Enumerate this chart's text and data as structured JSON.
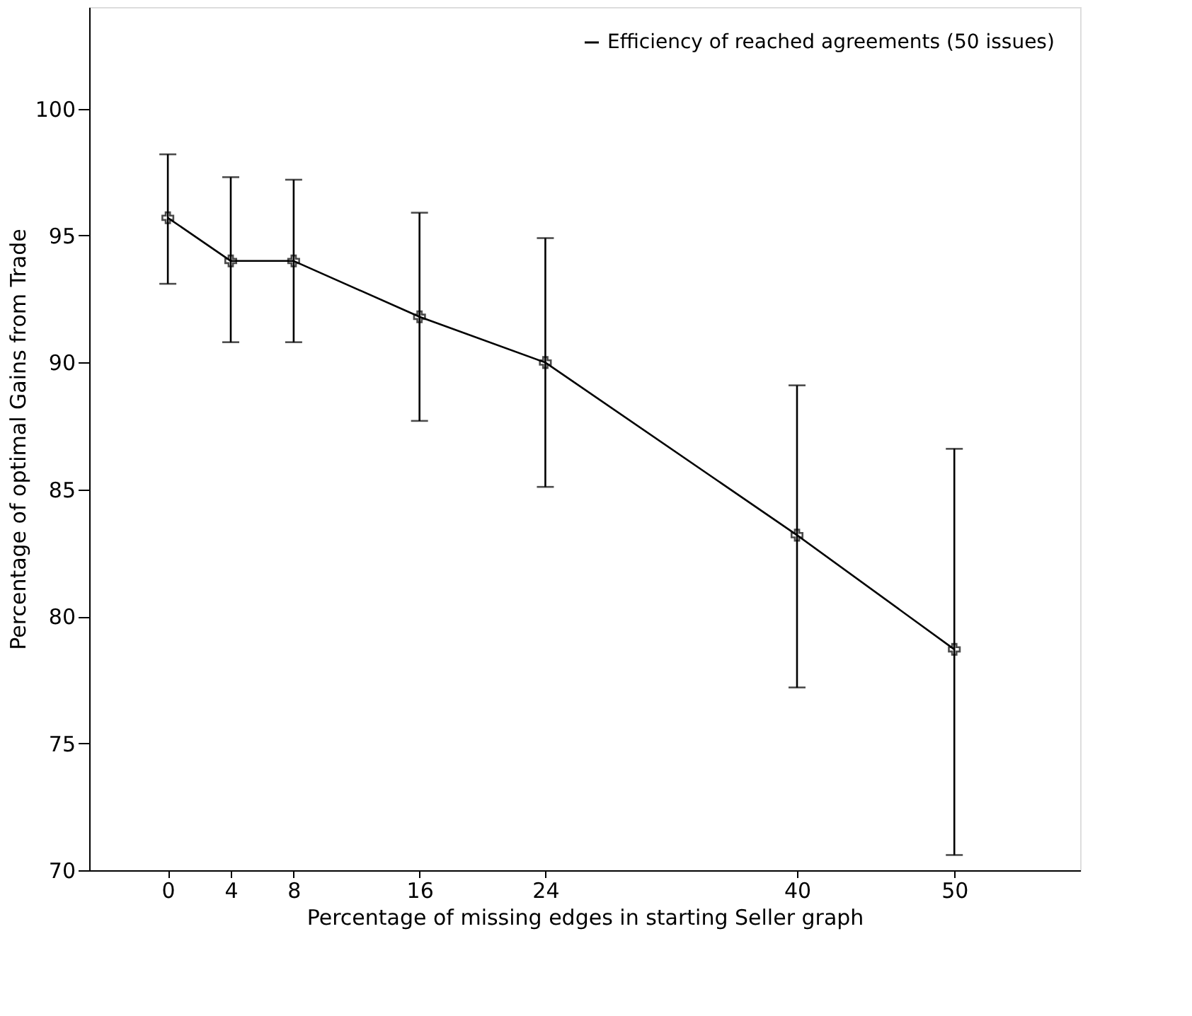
{
  "chart_data": {
    "type": "line",
    "xlabel": "Percentage of missing edges in starting Seller graph",
    "ylabel": "Percentage of optimal Gains from Trade",
    "x": [
      0,
      4,
      8,
      16,
      24,
      40,
      50
    ],
    "series": [
      {
        "name": "Efficiency of reached agreements (50 issues)",
        "color": "#000000",
        "values": [
          95.7,
          94.0,
          94.0,
          91.8,
          90.0,
          83.2,
          78.7
        ],
        "errors": [
          [
            93.1,
            98.2
          ],
          [
            90.8,
            97.3
          ],
          [
            90.8,
            97.2
          ],
          [
            87.7,
            95.9
          ],
          [
            85.1,
            94.9
          ],
          [
            77.2,
            89.1
          ],
          [
            70.6,
            86.6
          ]
        ]
      }
    ],
    "xlim": [
      -5,
      58
    ],
    "xticks": [
      0,
      4,
      8,
      16,
      24,
      40,
      50
    ],
    "ylim": [
      70,
      104
    ],
    "yticks": [
      70,
      75,
      80,
      85,
      90,
      95,
      100
    ],
    "grid": false,
    "legend": "top right",
    "marker": "cross",
    "line_style": "solid"
  }
}
